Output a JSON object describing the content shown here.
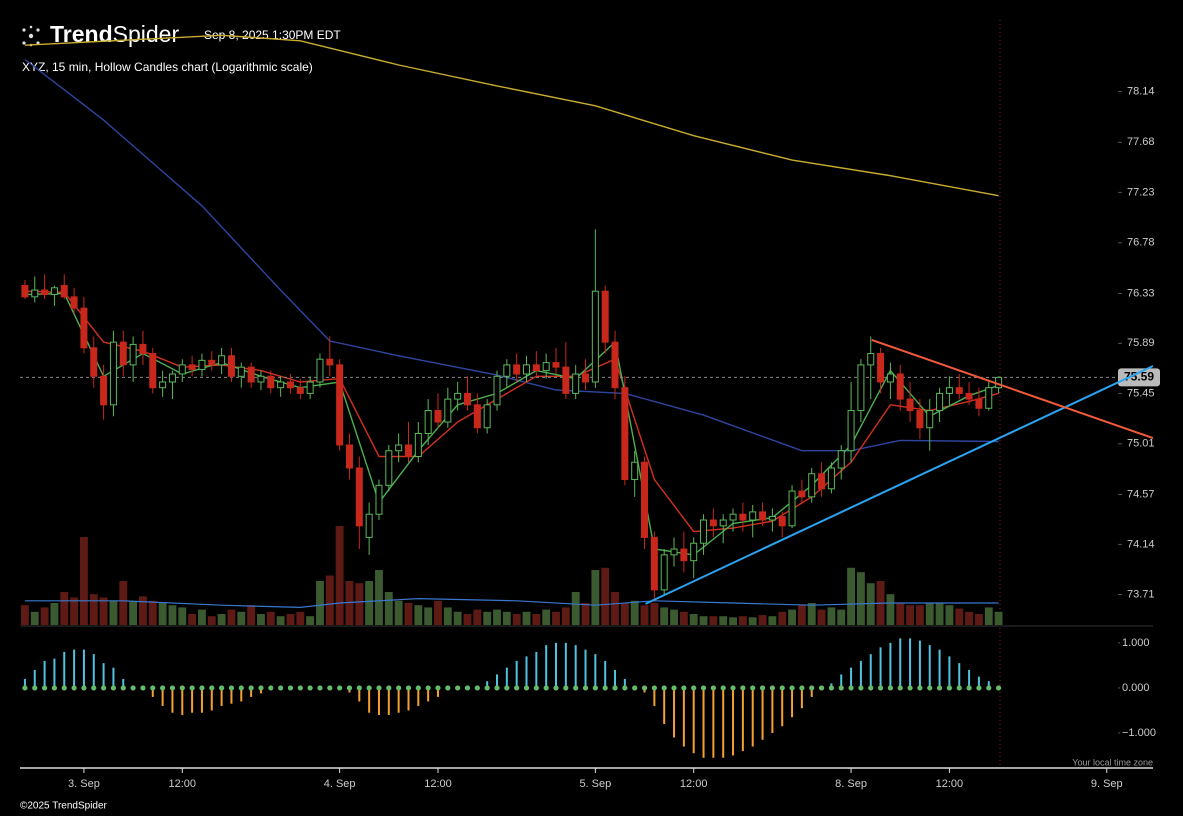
{
  "chart_data": {
    "type": "candlestick",
    "brand": [
      "Trend",
      "Spider"
    ],
    "timestamp": "Sep 8, 2025 1:30PM EDT",
    "title": "XYZ, 15 min, Hollow Candles chart (Logarithmic scale)",
    "timezone_note": "Your local time zone",
    "footer": "©2025 TrendSpider",
    "log": true,
    "xlim": [
      -0.5,
      114.7
    ],
    "xticks": [
      {
        "value": 6,
        "label": "3. Sep"
      },
      {
        "value": 16,
        "label": "12:00"
      },
      {
        "value": 32,
        "label": "4. Sep"
      },
      {
        "value": 42,
        "label": "12:00"
      },
      {
        "value": 58,
        "label": "5. Sep"
      },
      {
        "value": 68,
        "label": "12:00"
      },
      {
        "value": 84,
        "label": "8. Sep"
      },
      {
        "value": 94,
        "label": "12:00"
      },
      {
        "value": 110,
        "label": "9. Sep"
      }
    ],
    "ylim": [
      73.45,
      78.79
    ],
    "yticks": [
      78.14,
      77.68,
      77.23,
      76.78,
      76.33,
      75.89,
      75.45,
      75.01,
      74.57,
      74.14,
      73.71
    ],
    "last_price": 75.59,
    "colors": {
      "up": "#5cb85c",
      "down": "#c8281c",
      "volume_up": "#3b5a30",
      "volume_down": "#5e1a14"
    },
    "candles": [
      [
        76.4,
        76.45,
        76.28,
        76.3
      ],
      [
        76.3,
        76.48,
        76.25,
        76.36
      ],
      [
        76.36,
        76.5,
        76.28,
        76.32
      ],
      [
        76.32,
        76.4,
        76.22,
        76.38
      ],
      [
        76.4,
        76.5,
        76.28,
        76.3
      ],
      [
        76.3,
        76.38,
        76.15,
        76.2
      ],
      [
        76.2,
        76.3,
        75.8,
        75.85
      ],
      [
        75.85,
        75.95,
        75.5,
        75.6
      ],
      [
        75.6,
        75.7,
        75.22,
        75.35
      ],
      [
        75.35,
        76.0,
        75.25,
        75.9
      ],
      [
        75.9,
        76.0,
        75.6,
        75.7
      ],
      [
        75.7,
        75.95,
        75.55,
        75.88
      ],
      [
        75.88,
        76.0,
        75.7,
        75.8
      ],
      [
        75.8,
        75.85,
        75.45,
        75.5
      ],
      [
        75.5,
        75.65,
        75.42,
        75.55
      ],
      [
        75.55,
        75.65,
        75.4,
        75.62
      ],
      [
        75.62,
        75.75,
        75.55,
        75.7
      ],
      [
        75.7,
        75.78,
        75.6,
        75.66
      ],
      [
        75.66,
        75.8,
        75.6,
        75.74
      ],
      [
        75.74,
        75.82,
        75.65,
        75.7
      ],
      [
        75.7,
        75.85,
        75.62,
        75.78
      ],
      [
        75.78,
        75.85,
        75.55,
        75.6
      ],
      [
        75.6,
        75.72,
        75.5,
        75.68
      ],
      [
        75.68,
        75.72,
        75.5,
        75.55
      ],
      [
        75.55,
        75.65,
        75.48,
        75.6
      ],
      [
        75.6,
        75.65,
        75.45,
        75.5
      ],
      [
        75.5,
        75.6,
        75.42,
        75.55
      ],
      [
        75.55,
        75.62,
        75.45,
        75.5
      ],
      [
        75.5,
        75.58,
        75.4,
        75.45
      ],
      [
        75.45,
        75.6,
        75.4,
        75.55
      ],
      [
        75.55,
        75.8,
        75.5,
        75.75
      ],
      [
        75.75,
        75.95,
        75.6,
        75.7
      ],
      [
        75.7,
        75.75,
        74.95,
        75.0
      ],
      [
        75.0,
        75.1,
        74.7,
        74.8
      ],
      [
        74.8,
        74.9,
        74.1,
        74.3
      ],
      [
        74.2,
        74.5,
        74.05,
        74.4
      ],
      [
        74.4,
        74.7,
        74.35,
        74.65
      ],
      [
        74.65,
        75.0,
        74.6,
        74.95
      ],
      [
        74.95,
        75.1,
        74.85,
        75.0
      ],
      [
        75.0,
        75.2,
        74.85,
        74.9
      ],
      [
        74.9,
        75.2,
        74.85,
        75.1
      ],
      [
        75.1,
        75.4,
        75.0,
        75.3
      ],
      [
        75.3,
        75.45,
        75.15,
        75.2
      ],
      [
        75.2,
        75.5,
        75.15,
        75.4
      ],
      [
        75.4,
        75.55,
        75.3,
        75.45
      ],
      [
        75.45,
        75.6,
        75.3,
        75.35
      ],
      [
        75.35,
        75.45,
        75.1,
        75.15
      ],
      [
        75.15,
        75.4,
        75.1,
        75.35
      ],
      [
        75.35,
        75.65,
        75.3,
        75.6
      ],
      [
        75.6,
        75.75,
        75.5,
        75.7
      ],
      [
        75.7,
        75.8,
        75.55,
        75.62
      ],
      [
        75.62,
        75.78,
        75.55,
        75.7
      ],
      [
        75.7,
        75.82,
        75.6,
        75.65
      ],
      [
        75.65,
        75.8,
        75.58,
        75.72
      ],
      [
        75.72,
        75.85,
        75.62,
        75.68
      ],
      [
        75.68,
        75.9,
        75.4,
        75.45
      ],
      [
        75.45,
        75.7,
        75.4,
        75.62
      ],
      [
        75.62,
        75.75,
        75.48,
        75.55
      ],
      [
        75.55,
        76.9,
        75.5,
        76.35
      ],
      [
        76.35,
        76.4,
        75.8,
        75.9
      ],
      [
        75.9,
        76.0,
        75.4,
        75.5
      ],
      [
        75.5,
        75.6,
        74.65,
        74.7
      ],
      [
        74.7,
        74.95,
        74.55,
        74.85
      ],
      [
        74.85,
        74.9,
        74.1,
        74.2
      ],
      [
        74.2,
        74.25,
        73.65,
        73.75
      ],
      [
        73.75,
        74.1,
        73.7,
        74.05
      ],
      [
        74.05,
        74.2,
        73.95,
        74.1
      ],
      [
        74.1,
        74.25,
        73.9,
        74.0
      ],
      [
        74.0,
        74.2,
        73.85,
        74.15
      ],
      [
        74.15,
        74.4,
        74.05,
        74.35
      ],
      [
        74.35,
        74.45,
        74.2,
        74.3
      ],
      [
        74.3,
        74.4,
        74.15,
        74.35
      ],
      [
        74.35,
        74.45,
        74.25,
        74.4
      ],
      [
        74.4,
        74.5,
        74.25,
        74.35
      ],
      [
        74.35,
        74.48,
        74.2,
        74.42
      ],
      [
        74.42,
        74.5,
        74.3,
        74.35
      ],
      [
        74.35,
        74.45,
        74.25,
        74.38
      ],
      [
        74.38,
        74.42,
        74.2,
        74.3
      ],
      [
        74.3,
        74.65,
        74.28,
        74.6
      ],
      [
        74.6,
        74.7,
        74.5,
        74.55
      ],
      [
        74.55,
        74.8,
        74.5,
        74.75
      ],
      [
        74.75,
        74.85,
        74.55,
        74.62
      ],
      [
        74.62,
        74.85,
        74.58,
        74.8
      ],
      [
        74.8,
        75.0,
        74.7,
        74.95
      ],
      [
        74.95,
        75.55,
        74.85,
        75.3
      ],
      [
        75.3,
        75.75,
        75.2,
        75.7
      ],
      [
        75.7,
        75.95,
        75.4,
        75.8
      ],
      [
        75.8,
        75.85,
        75.45,
        75.55
      ],
      [
        75.55,
        75.72,
        75.4,
        75.62
      ],
      [
        75.62,
        75.7,
        75.3,
        75.4
      ],
      [
        75.4,
        75.55,
        75.2,
        75.3
      ],
      [
        75.3,
        75.4,
        75.05,
        75.15
      ],
      [
        75.15,
        75.4,
        74.95,
        75.3
      ],
      [
        75.3,
        75.5,
        75.2,
        75.45
      ],
      [
        75.45,
        75.6,
        75.35,
        75.5
      ],
      [
        75.5,
        75.62,
        75.4,
        75.45
      ],
      [
        75.45,
        75.55,
        75.35,
        75.4
      ],
      [
        75.4,
        75.5,
        75.25,
        75.32
      ],
      [
        75.32,
        75.55,
        75.3,
        75.5
      ],
      [
        75.5,
        75.6,
        75.45,
        75.59
      ]
    ],
    "overlays": [
      {
        "color": "#c8ac32",
        "x": [
          0,
          20,
          28,
          38,
          48,
          58,
          68,
          78,
          88,
          99
        ],
        "values": [
          78.56,
          78.65,
          78.6,
          78.38,
          78.19,
          78.01,
          77.74,
          77.52,
          77.38,
          77.2
        ]
      },
      {
        "color": "#2f45a0",
        "x": [
          0,
          8,
          18,
          26,
          31,
          38,
          48,
          54,
          61,
          69,
          79,
          84,
          89,
          99
        ],
        "values": [
          78.43,
          77.88,
          77.11,
          76.36,
          75.91,
          75.78,
          75.61,
          75.48,
          75.45,
          75.26,
          74.95,
          74.95,
          75.04,
          75.03
        ]
      },
      {
        "color": "#d0301e",
        "x": [
          0,
          4,
          8,
          12,
          16,
          20,
          24,
          28,
          32,
          36,
          40,
          44,
          48,
          52,
          56,
          60,
          64,
          68,
          72,
          76,
          80,
          84,
          88,
          92,
          96,
          99
        ],
        "values": [
          76.35,
          76.34,
          75.9,
          75.82,
          75.68,
          75.7,
          75.65,
          75.55,
          75.58,
          74.9,
          74.9,
          75.2,
          75.4,
          75.6,
          75.6,
          75.75,
          74.7,
          74.25,
          74.28,
          74.34,
          74.55,
          74.85,
          75.35,
          75.3,
          75.38,
          75.45
        ]
      },
      {
        "color": "#4caf50",
        "x": [
          0,
          4,
          8,
          12,
          16,
          20,
          24,
          28,
          32,
          36,
          40,
          44,
          48,
          52,
          56,
          60,
          64,
          68,
          72,
          76,
          80,
          84,
          88,
          92,
          96,
          99
        ],
        "values": [
          76.32,
          76.33,
          75.6,
          75.8,
          75.62,
          75.72,
          75.6,
          75.5,
          75.55,
          74.5,
          74.95,
          75.35,
          75.45,
          75.65,
          75.58,
          75.9,
          74.1,
          74.05,
          74.32,
          74.37,
          74.65,
          75.0,
          75.65,
          75.25,
          75.43,
          75.52
        ]
      }
    ],
    "trendlines": [
      {
        "color": "#2aa4f2",
        "x": [
          63.1,
          114.7
        ],
        "values": [
          73.63,
          75.69
        ]
      },
      {
        "color": "#f25a3a",
        "x": [
          86.1,
          114.7
        ],
        "values": [
          75.92,
          75.06
        ]
      }
    ],
    "volume": {
      "values": [
        18,
        12,
        16,
        20,
        30,
        25,
        80,
        28,
        25,
        22,
        40,
        22,
        26,
        22,
        20,
        18,
        16,
        10,
        14,
        8,
        10,
        14,
        12,
        18,
        10,
        12,
        8,
        10,
        12,
        8,
        40,
        45,
        90,
        40,
        38,
        40,
        50,
        30,
        22,
        20,
        18,
        16,
        22,
        16,
        12,
        10,
        14,
        12,
        14,
        12,
        10,
        12,
        10,
        14,
        12,
        16,
        30,
        20,
        50,
        52,
        30,
        20,
        22,
        18,
        20,
        16,
        14,
        12,
        10,
        8,
        8,
        8,
        7,
        8,
        7,
        9,
        8,
        12,
        14,
        18,
        20,
        14,
        16,
        14,
        52,
        48,
        38,
        40,
        28,
        20,
        18,
        18,
        20,
        20,
        18,
        15,
        12,
        10,
        16,
        12
      ],
      "ma": {
        "color": "#3a78d0",
        "x": [
          0,
          10,
          20,
          28,
          32,
          40,
          50,
          58,
          64,
          72,
          80,
          88,
          99
        ],
        "values": [
          22,
          22,
          18,
          16,
          20,
          24,
          22,
          18,
          22,
          20,
          18,
          20,
          20
        ]
      }
    },
    "oscillator": {
      "ylim": [
        -1.71,
        1.33
      ],
      "yticks": [
        {
          "value": 1,
          "label": "1.000"
        },
        {
          "value": 0,
          "label": "0.000"
        },
        {
          "value": -1,
          "label": "−1.000"
        }
      ],
      "up_color": "#4fc3e0",
      "down_color": "#f5a030",
      "dot_color": "#66bb6a",
      "values": [
        0.2,
        0.4,
        0.6,
        0.65,
        0.8,
        0.85,
        0.85,
        0.75,
        0.55,
        0.45,
        0.2,
        0.05,
        -0.05,
        -0.2,
        -0.4,
        -0.55,
        -0.6,
        -0.55,
        -0.55,
        -0.5,
        -0.4,
        -0.35,
        -0.3,
        -0.2,
        -0.12,
        -0.05,
        -0.02,
        -0.02,
        -0.02,
        -0.02,
        -0.02,
        -0.02,
        -0.03,
        -0.1,
        -0.3,
        -0.55,
        -0.6,
        -0.6,
        -0.55,
        -0.5,
        -0.4,
        -0.3,
        -0.2,
        -0.05,
        0,
        0,
        0.05,
        0.15,
        0.3,
        0.45,
        0.6,
        0.7,
        0.8,
        0.95,
        1.0,
        1.0,
        0.95,
        0.85,
        0.75,
        0.6,
        0.4,
        0.2,
        0.05,
        -0.1,
        -0.4,
        -0.8,
        -1.1,
        -1.3,
        -1.45,
        -1.55,
        -1.55,
        -1.55,
        -1.5,
        -1.4,
        -1.3,
        -1.15,
        -1.0,
        -0.85,
        -0.65,
        -0.45,
        -0.2,
        -0.05,
        0.1,
        0.3,
        0.45,
        0.6,
        0.75,
        0.9,
        1.0,
        1.1,
        1.1,
        1.05,
        0.95,
        0.85,
        0.7,
        0.55,
        0.4,
        0.25,
        0.15,
        0.05
      ]
    }
  }
}
